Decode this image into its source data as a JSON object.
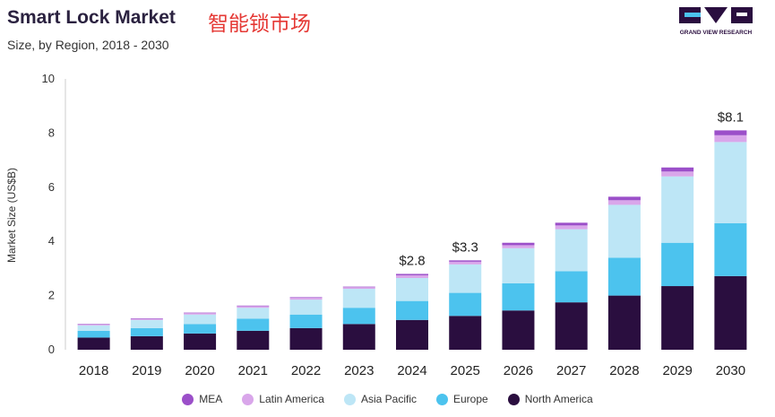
{
  "header": {
    "title": "Smart Lock Market",
    "title_cn": "智能锁市场",
    "subtitle": "Size, by Region, 2018 - 2030",
    "brand": "GRAND VIEW RESEARCH"
  },
  "chart_data": {
    "type": "bar",
    "stacked": true,
    "categories": [
      "2018",
      "2019",
      "2020",
      "2021",
      "2022",
      "2023",
      "2024",
      "2025",
      "2026",
      "2027",
      "2028",
      "2029",
      "2030"
    ],
    "ylabel": "Market Size (US$B)",
    "ylim": [
      0,
      10
    ],
    "yticks": [
      0,
      2,
      4,
      6,
      8,
      10
    ],
    "grid": false,
    "legend_position": "bottom",
    "series": [
      {
        "name": "North America",
        "color": "#2a0e3f",
        "values": [
          0.45,
          0.5,
          0.6,
          0.7,
          0.8,
          0.95,
          1.1,
          1.25,
          1.45,
          1.75,
          2.0,
          2.35,
          2.72
        ]
      },
      {
        "name": "Europe",
        "color": "#4cc3ee",
        "values": [
          0.25,
          0.3,
          0.35,
          0.45,
          0.5,
          0.6,
          0.7,
          0.85,
          1.0,
          1.15,
          1.4,
          1.6,
          1.95
        ]
      },
      {
        "name": "Asia Pacific",
        "color": "#bde6f6",
        "values": [
          0.2,
          0.3,
          0.35,
          0.4,
          0.55,
          0.7,
          0.85,
          1.05,
          1.3,
          1.55,
          1.95,
          2.45,
          3.0
        ]
      },
      {
        "name": "Latin America",
        "color": "#d9a6ea",
        "values": [
          0.03,
          0.04,
          0.05,
          0.06,
          0.07,
          0.06,
          0.1,
          0.1,
          0.11,
          0.14,
          0.17,
          0.18,
          0.25
        ]
      },
      {
        "name": "MEA",
        "color": "#9b4fc9",
        "values": [
          0.02,
          0.02,
          0.02,
          0.02,
          0.02,
          0.02,
          0.05,
          0.05,
          0.09,
          0.1,
          0.13,
          0.15,
          0.18
        ]
      }
    ],
    "legend_order": [
      "MEA",
      "Latin America",
      "Asia Pacific",
      "Europe",
      "North America"
    ],
    "total_labels": [
      {
        "category": "2024",
        "label": "$2.8"
      },
      {
        "category": "2025",
        "label": "$3.3"
      },
      {
        "category": "2030",
        "label": "$8.1"
      }
    ]
  }
}
